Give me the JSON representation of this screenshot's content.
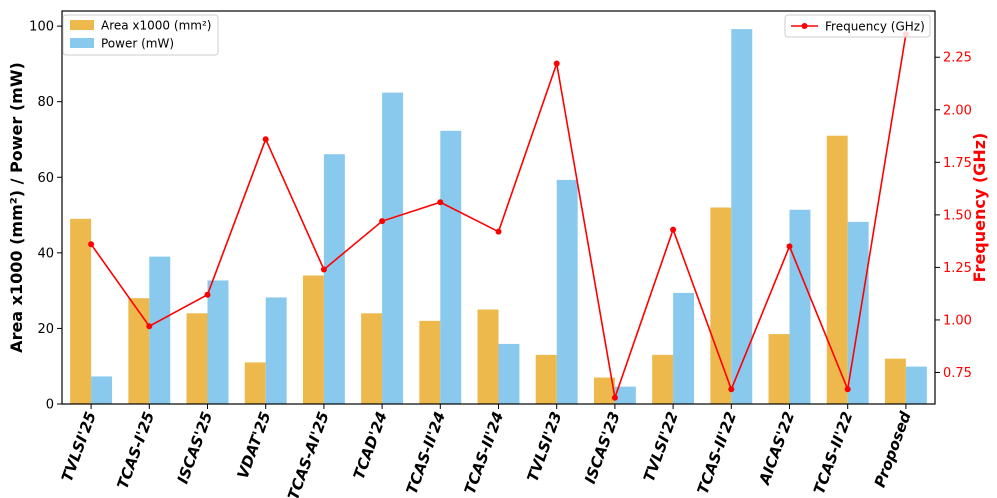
{
  "chart_data": {
    "type": "bar",
    "categories": [
      "TVLSI'25",
      "TCAS-I'25",
      "ISCAS'25",
      "VDAT'25",
      "TCAS-AI'25",
      "TCAD'24",
      "TCAS-II'24",
      "TCAS-II'24",
      "TVLSI'23",
      "ISCAS'23",
      "TVLSI'22",
      "TCAS-II'22",
      "AICAS'22",
      "TCAS-II'22",
      "Proposed"
    ],
    "series": [
      {
        "name": "Area x1000 (mm²)",
        "axis": "left",
        "kind": "bar",
        "color": "#EDB94C",
        "values": [
          49,
          28,
          24,
          11,
          34,
          24,
          22,
          25,
          13,
          7,
          13,
          52,
          18.5,
          71,
          12
        ]
      },
      {
        "name": "Power (mW)",
        "axis": "left",
        "kind": "bar",
        "color": "#89C9EE",
        "values": [
          7.3,
          39,
          32.7,
          28.2,
          66.1,
          82.4,
          72.3,
          15.9,
          59.3,
          4.6,
          29.4,
          99.2,
          51.4,
          48.2,
          9.9
        ]
      },
      {
        "name": "Frequency (GHz)",
        "axis": "right",
        "kind": "line",
        "color": "#FF0000",
        "values": [
          1.36,
          0.97,
          1.12,
          1.86,
          1.24,
          1.47,
          1.56,
          1.42,
          2.22,
          0.63,
          1.43,
          0.67,
          1.35,
          0.67,
          2.36
        ]
      }
    ],
    "ylabel": "Area x1000 (mm²) / Power (mW)",
    "y2label": "Frequency (GHz)",
    "ylim": [
      0,
      104
    ],
    "yticks": [
      0,
      20,
      40,
      60,
      80,
      100
    ],
    "y2lim": [
      0.6,
      2.47
    ],
    "y2ticks": [
      "0.75",
      "1.00",
      "1.25",
      "1.50",
      "1.75",
      "2.00",
      "2.25"
    ],
    "grid": false,
    "legend_left": "top-left",
    "legend_right": "top-right"
  }
}
